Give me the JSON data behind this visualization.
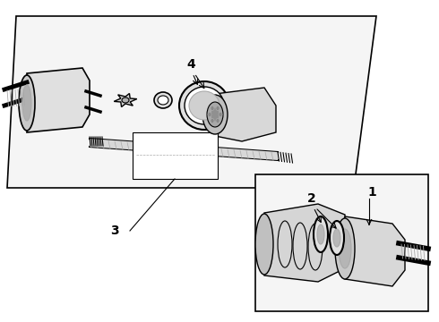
{
  "background_color": "#ffffff",
  "line_color": "#000000",
  "gray_color": "#888888",
  "mid_gray": "#aaaaaa",
  "dark_gray": "#666666",
  "light_gray": "#dddddd",
  "fill_gray": "#e8e8e8"
}
